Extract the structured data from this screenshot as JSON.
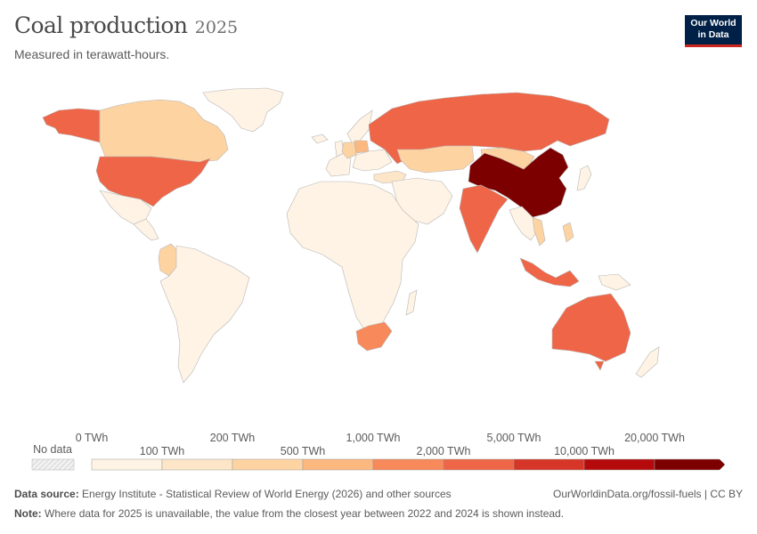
{
  "header": {
    "title": "Coal production",
    "year": "2025",
    "subtitle": "Measured in terawatt-hours.",
    "logo_line1": "Our World",
    "logo_line2": "in Data"
  },
  "legend": {
    "no_data_label": "No data",
    "upper_labels": [
      "0 TWh",
      "200 TWh",
      "1,000 TWh",
      "5,000 TWh",
      "20,000 TWh"
    ],
    "lower_labels": [
      "100 TWh",
      "500 TWh",
      "2,000 TWh",
      "10,000 TWh"
    ],
    "colors": [
      "#fef3e4",
      "#fde6c8",
      "#fdd3a2",
      "#fcb87f",
      "#f7895a",
      "#ee6547",
      "#d53627",
      "#b40a0b",
      "#7d0000"
    ],
    "no_data_color": "#e6e6e6"
  },
  "footer": {
    "source_label": "Data source:",
    "source_text": "Energy Institute - Statistical Review of World Energy (2026) and other sources",
    "url": "OurWorldinData.org/fossil-fuels | CC BY",
    "note_label": "Note:",
    "note_text": "Where data for 2025 is unavailable, the value from the closest year between 2022 and 2024 is shown instead."
  }
}
